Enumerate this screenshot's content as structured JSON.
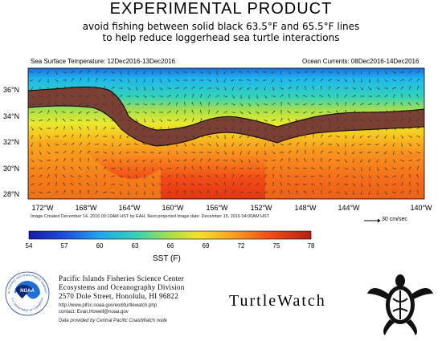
{
  "header": {
    "title": "EXPERIMENTAL PRODUCT",
    "subtitle_line1": "avoid fishing between solid black 63.5°F and 65.5°F lines",
    "subtitle_line2": "to help reduce loggerhead sea turtle interactions"
  },
  "map": {
    "sst_label": "Sea Surface Temperature: 12Dec2016-13Dec2016",
    "currents_label": "Ocean Currents: 08Dec2016-14Dec2016",
    "lat_labels": [
      "36°N",
      "34°N",
      "32°N",
      "30°N",
      "28°N"
    ],
    "lon_labels": [
      "172°W",
      "168°W",
      "164°W",
      "160°W",
      "156°W",
      "152°W",
      "148°W",
      "144°W",
      "140°W"
    ],
    "band_color": "#7a4034",
    "arrow_color": "#333333"
  },
  "credits": {
    "image_created": "Image Created December 14, 2016 09:10AM HST by EAH.  Next projected image date: December 15, 2016 04:00AM HST",
    "scale_label": "30 cm/sec"
  },
  "colorbar": {
    "ticks": [
      "54",
      "57",
      "60",
      "63",
      "66",
      "69",
      "72",
      "75",
      "78"
    ],
    "label": "SST (F)",
    "colors": [
      "#1a1aa8",
      "#1e6fe0",
      "#1fb7ef",
      "#34d3b8",
      "#a8e04a",
      "#f5e12a",
      "#f8a21e",
      "#f24a16",
      "#b32016"
    ]
  },
  "org": {
    "name": "Pacific Islands Fisheries Science Center",
    "division": "Ecosystems and Oceanography Division",
    "address": "2570 Dole Street, Honolulu, HI 96822",
    "url": "http://www.pifsc.noaa.gov/eod/turtlewatch.php",
    "contact": "contact: Evan.Howell@noaa.gov",
    "provider": "Data provided by Central Pacific CoastWatch node",
    "logo_text": "NOAA",
    "logo_ring_top": "NATIONAL OCEANIC AND ATMOSPHERIC ADMINISTRATION",
    "logo_ring_bottom": "U.S. DEPARTMENT OF COMMERCE"
  },
  "brand": {
    "name": "TurtleWatch"
  }
}
